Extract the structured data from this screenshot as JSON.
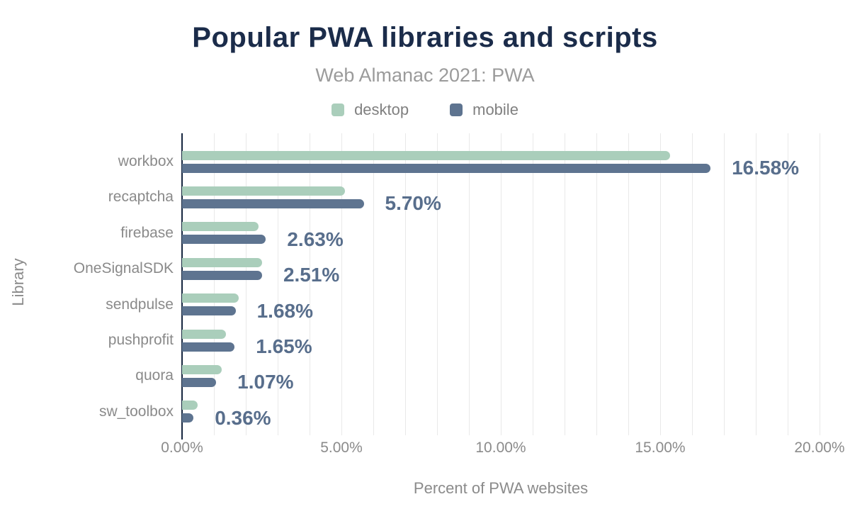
{
  "header": {
    "title": "Popular PWA libraries and scripts",
    "subtitle": "Web Almanac 2021: PWA"
  },
  "colors": {
    "title": "#1b2c4a",
    "subtitle": "#9b9b9b",
    "axis_text": "#8b8b8b",
    "axis_line": "#16263f",
    "gridline": "#e9e9e9",
    "desktop": "#aacebb",
    "mobile": "#5e7490",
    "data_label": "#586e8c",
    "background": "#ffffff"
  },
  "chart_data": {
    "type": "bar",
    "orientation": "horizontal",
    "title": "Popular PWA libraries and scripts",
    "subtitle": "Web Almanac 2021: PWA",
    "categories": [
      "workbox",
      "recaptcha",
      "firebase",
      "OneSignalSDK",
      "sendpulse",
      "pushprofit",
      "quora",
      "sw_toolbox"
    ],
    "series": [
      {
        "name": "desktop",
        "color": "#aacebb",
        "values": [
          15.3,
          5.1,
          2.4,
          2.5,
          1.78,
          1.38,
          1.25,
          0.49
        ]
      },
      {
        "name": "mobile",
        "color": "#5e7490",
        "values": [
          16.58,
          5.7,
          2.63,
          2.51,
          1.68,
          1.65,
          1.07,
          0.36
        ]
      }
    ],
    "data_labels": [
      "16.58%",
      "5.70%",
      "2.63%",
      "2.51%",
      "1.68%",
      "1.65%",
      "1.07%",
      "0.36%"
    ],
    "data_labels_series": "mobile",
    "xlabel": "Percent of PWA websites",
    "ylabel": "Library",
    "xlim": [
      0,
      20
    ],
    "x_ticks": [
      "0.00%",
      "5.00%",
      "10.00%",
      "15.00%",
      "20.00%"
    ],
    "x_tick_values": [
      0,
      5,
      10,
      15,
      20
    ],
    "grid": "vertical-minor",
    "grid_step": 1,
    "legend_position": "top"
  }
}
